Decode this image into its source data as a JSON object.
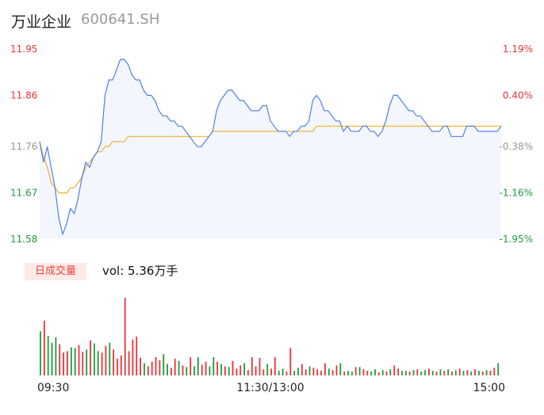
{
  "header": {
    "name": "万业企业",
    "code": "600641.SH"
  },
  "volume_panel": {
    "tag": "日成交量",
    "label": "vol: 5.36万手"
  },
  "colors": {
    "price_line": "#4e7fe3",
    "avg_line": "#f2ae2c",
    "area_fill": "#f3f6fd",
    "up": "#e8333a",
    "down": "#1a9c3c",
    "neutral": "#999999"
  },
  "chart_data": [
    {
      "type": "line",
      "title": "",
      "ylim": [
        11.58,
        11.95
      ],
      "y_ticks": [
        {
          "value": 11.95,
          "label": "11.95",
          "pct": "1.19%",
          "tone": "up"
        },
        {
          "value": 11.86,
          "label": "11.86",
          "pct": "0.40%",
          "tone": "up"
        },
        {
          "value": 11.76,
          "label": "11.76",
          "pct": "-0.38%",
          "tone": "neutral"
        },
        {
          "value": 11.67,
          "label": "11.67",
          "pct": "-1.16%",
          "tone": "down"
        },
        {
          "value": 11.58,
          "label": "11.58",
          "pct": "-1.95%",
          "tone": "down"
        }
      ],
      "x_range": [
        0,
        240
      ],
      "x_ticks": [
        {
          "at": 0,
          "label": "09:30"
        },
        {
          "at": 120,
          "label": "11:30/13:00"
        },
        {
          "at": 240,
          "label": "15:00"
        }
      ],
      "series": [
        {
          "name": "",
          "role": "price",
          "x_step": 2,
          "values": [
            11.77,
            11.73,
            11.76,
            11.72,
            11.68,
            11.62,
            11.59,
            11.61,
            11.64,
            11.63,
            11.66,
            11.7,
            11.73,
            11.72,
            11.74,
            11.75,
            11.77,
            11.86,
            11.89,
            11.89,
            11.91,
            11.93,
            11.93,
            11.92,
            11.9,
            11.89,
            11.89,
            11.87,
            11.86,
            11.86,
            11.85,
            11.83,
            11.82,
            11.82,
            11.81,
            11.81,
            11.8,
            11.8,
            11.79,
            11.78,
            11.77,
            11.76,
            11.76,
            11.77,
            11.78,
            11.79,
            11.83,
            11.85,
            11.86,
            11.87,
            11.87,
            11.86,
            11.85,
            11.85,
            11.84,
            11.83,
            11.83,
            11.83,
            11.84,
            11.84,
            11.81,
            11.8,
            11.79,
            11.79,
            11.79,
            11.78,
            11.79,
            11.79,
            11.8,
            11.8,
            11.81,
            11.85,
            11.86,
            11.85,
            11.83,
            11.83,
            11.82,
            11.81,
            11.81,
            11.79,
            11.8,
            11.79,
            11.79,
            11.79,
            11.8,
            11.8,
            11.79,
            11.79,
            11.78,
            11.79,
            11.81,
            11.84,
            11.86,
            11.86,
            11.85,
            11.84,
            11.83,
            11.83,
            11.82,
            11.82,
            11.81,
            11.8,
            11.79,
            11.79,
            11.79,
            11.8,
            11.8,
            11.78,
            11.78,
            11.78,
            11.78,
            11.8,
            11.8,
            11.8,
            11.79,
            11.79,
            11.79,
            11.79,
            11.79,
            11.79,
            11.8
          ]
        },
        {
          "name": "",
          "role": "average",
          "x_step": 2,
          "values": [
            11.77,
            11.74,
            11.72,
            11.69,
            11.68,
            11.67,
            11.67,
            11.67,
            11.68,
            11.68,
            11.69,
            11.7,
            11.72,
            11.73,
            11.74,
            11.75,
            11.75,
            11.76,
            11.76,
            11.77,
            11.77,
            11.77,
            11.77,
            11.78,
            11.78,
            11.78,
            11.78,
            11.78,
            11.78,
            11.78,
            11.78,
            11.78,
            11.78,
            11.78,
            11.78,
            11.78,
            11.78,
            11.78,
            11.78,
            11.78,
            11.78,
            11.78,
            11.78,
            11.78,
            11.78,
            11.79,
            11.79,
            11.79,
            11.79,
            11.79,
            11.79,
            11.79,
            11.79,
            11.79,
            11.79,
            11.79,
            11.79,
            11.79,
            11.79,
            11.79,
            11.79,
            11.79,
            11.79,
            11.79,
            11.79,
            11.79,
            11.79,
            11.79,
            11.79,
            11.79,
            11.79,
            11.79,
            11.8,
            11.8,
            11.8,
            11.8,
            11.8,
            11.8,
            11.8,
            11.8,
            11.8,
            11.8,
            11.8,
            11.8,
            11.8,
            11.8,
            11.8,
            11.8,
            11.8,
            11.8,
            11.8,
            11.8,
            11.8,
            11.8,
            11.8,
            11.8,
            11.8,
            11.8,
            11.8,
            11.8,
            11.8,
            11.8,
            11.8,
            11.8,
            11.8,
            11.8,
            11.8,
            11.8,
            11.8,
            11.8,
            11.8,
            11.8,
            11.8,
            11.8,
            11.8,
            11.8,
            11.8,
            11.8,
            11.8,
            11.8,
            11.8
          ]
        }
      ]
    },
    {
      "type": "bar",
      "title": "",
      "x_step": 2,
      "volume_bars": [
        {
          "v": 5.8,
          "d": 0
        },
        {
          "v": 7.2,
          "d": 1
        },
        {
          "v": 5.2,
          "d": 0
        },
        {
          "v": 4.3,
          "d": 0
        },
        {
          "v": 5.0,
          "d": 0
        },
        {
          "v": 4.1,
          "d": 1
        },
        {
          "v": 3.0,
          "d": 1
        },
        {
          "v": 3.2,
          "d": 1
        },
        {
          "v": 3.7,
          "d": 0
        },
        {
          "v": 3.6,
          "d": 0
        },
        {
          "v": 4.0,
          "d": 1
        },
        {
          "v": 3.1,
          "d": 1
        },
        {
          "v": 3.4,
          "d": 0
        },
        {
          "v": 4.6,
          "d": 1
        },
        {
          "v": 4.2,
          "d": 0
        },
        {
          "v": 3.2,
          "d": 0
        },
        {
          "v": 3.0,
          "d": 1
        },
        {
          "v": 3.9,
          "d": 1
        },
        {
          "v": 4.3,
          "d": 0
        },
        {
          "v": 3.4,
          "d": 1
        },
        {
          "v": 2.2,
          "d": 1
        },
        {
          "v": 2.6,
          "d": 1
        },
        {
          "v": 10.2,
          "d": 1
        },
        {
          "v": 3.2,
          "d": 1
        },
        {
          "v": 4.7,
          "d": 1
        },
        {
          "v": 5.1,
          "d": 1
        },
        {
          "v": 2.3,
          "d": 1
        },
        {
          "v": 1.6,
          "d": 0
        },
        {
          "v": 1.2,
          "d": 1
        },
        {
          "v": 1.8,
          "d": 1
        },
        {
          "v": 2.4,
          "d": 1
        },
        {
          "v": 2.0,
          "d": 1
        },
        {
          "v": 2.8,
          "d": 0
        },
        {
          "v": 1.5,
          "d": 0
        },
        {
          "v": 1.0,
          "d": 1
        },
        {
          "v": 2.2,
          "d": 1
        },
        {
          "v": 1.9,
          "d": 0
        },
        {
          "v": 1.3,
          "d": 1
        },
        {
          "v": 1.1,
          "d": 0
        },
        {
          "v": 2.4,
          "d": 1
        },
        {
          "v": 1.2,
          "d": 0
        },
        {
          "v": 2.4,
          "d": 0
        },
        {
          "v": 1.4,
          "d": 1
        },
        {
          "v": 1.8,
          "d": 1
        },
        {
          "v": 1.2,
          "d": 0
        },
        {
          "v": 2.4,
          "d": 0
        },
        {
          "v": 1.8,
          "d": 1
        },
        {
          "v": 1.5,
          "d": 0
        },
        {
          "v": 1.2,
          "d": 1
        },
        {
          "v": 1.1,
          "d": 0
        },
        {
          "v": 1.9,
          "d": 1
        },
        {
          "v": 0.9,
          "d": 1
        },
        {
          "v": 1.3,
          "d": 1
        },
        {
          "v": 1.6,
          "d": 0
        },
        {
          "v": 0.7,
          "d": 1
        },
        {
          "v": 2.4,
          "d": 1
        },
        {
          "v": 1.2,
          "d": 1
        },
        {
          "v": 2.3,
          "d": 1
        },
        {
          "v": 0.8,
          "d": 1
        },
        {
          "v": 1.5,
          "d": 0
        },
        {
          "v": 0.9,
          "d": 1
        },
        {
          "v": 2.4,
          "d": 1
        },
        {
          "v": 0.6,
          "d": 0
        },
        {
          "v": 0.9,
          "d": 0
        },
        {
          "v": 0.5,
          "d": 1
        },
        {
          "v": 3.6,
          "d": 1
        },
        {
          "v": 0.6,
          "d": 0
        },
        {
          "v": 1.0,
          "d": 0
        },
        {
          "v": 1.5,
          "d": 1
        },
        {
          "v": 0.8,
          "d": 1
        },
        {
          "v": 1.2,
          "d": 0
        },
        {
          "v": 1.0,
          "d": 1
        },
        {
          "v": 0.8,
          "d": 1
        },
        {
          "v": 0.6,
          "d": 1
        },
        {
          "v": 1.6,
          "d": 1
        },
        {
          "v": 0.9,
          "d": 0
        },
        {
          "v": 0.7,
          "d": 1
        },
        {
          "v": 1.3,
          "d": 1
        },
        {
          "v": 1.6,
          "d": 0
        },
        {
          "v": 0.5,
          "d": 1
        },
        {
          "v": 0.6,
          "d": 0
        },
        {
          "v": 0.5,
          "d": 0
        },
        {
          "v": 1.1,
          "d": 1
        },
        {
          "v": 1.1,
          "d": 0
        },
        {
          "v": 0.8,
          "d": 1
        },
        {
          "v": 0.6,
          "d": 1
        },
        {
          "v": 0.5,
          "d": 0
        },
        {
          "v": 0.8,
          "d": 0
        },
        {
          "v": 0.4,
          "d": 1
        },
        {
          "v": 0.7,
          "d": 0
        },
        {
          "v": 0.5,
          "d": 1
        },
        {
          "v": 0.8,
          "d": 0
        },
        {
          "v": 1.3,
          "d": 1
        },
        {
          "v": 0.9,
          "d": 1
        },
        {
          "v": 0.6,
          "d": 0
        },
        {
          "v": 0.6,
          "d": 0
        },
        {
          "v": 0.5,
          "d": 1
        },
        {
          "v": 0.7,
          "d": 0
        },
        {
          "v": 0.8,
          "d": 1
        },
        {
          "v": 0.5,
          "d": 0
        },
        {
          "v": 0.7,
          "d": 0
        },
        {
          "v": 0.9,
          "d": 1
        },
        {
          "v": 0.6,
          "d": 0
        },
        {
          "v": 0.5,
          "d": 1
        },
        {
          "v": 0.8,
          "d": 0
        },
        {
          "v": 0.6,
          "d": 1
        },
        {
          "v": 0.8,
          "d": 0
        },
        {
          "v": 0.5,
          "d": 1
        },
        {
          "v": 0.7,
          "d": 0
        },
        {
          "v": 0.9,
          "d": 1
        },
        {
          "v": 0.6,
          "d": 0
        },
        {
          "v": 0.7,
          "d": 1
        },
        {
          "v": 0.5,
          "d": 0
        },
        {
          "v": 0.8,
          "d": 1
        },
        {
          "v": 0.6,
          "d": 0
        },
        {
          "v": 0.5,
          "d": 1
        },
        {
          "v": 0.7,
          "d": 0
        },
        {
          "v": 0.6,
          "d": 1
        },
        {
          "v": 1.0,
          "d": 1
        },
        {
          "v": 1.6,
          "d": 0
        }
      ]
    }
  ]
}
